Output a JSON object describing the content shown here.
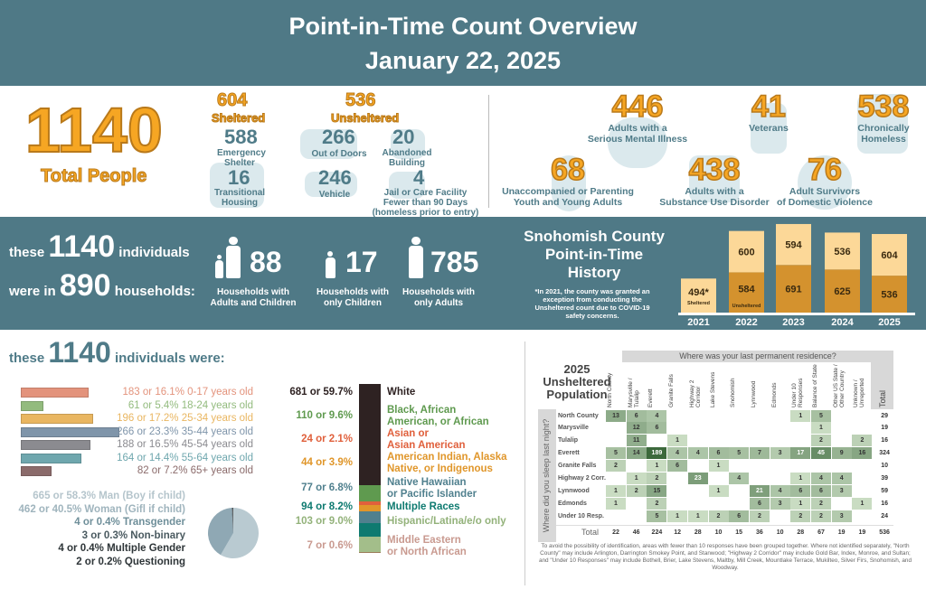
{
  "header": {
    "title": "Point-in-Time Count Overview",
    "date": "January 22, 2025"
  },
  "totals": {
    "total": "1140",
    "total_label": "Total People",
    "sheltered": "604",
    "sheltered_label": "Sheltered",
    "emergency": "588",
    "emergency_label": "Emergency Shelter",
    "transitional": "16",
    "transitional_label": "Transitional Housing",
    "unsheltered": "536",
    "unsheltered_label": "Unsheltered",
    "out_of_doors": "266",
    "out_of_doors_label": "Out of Doors",
    "abandoned": "20",
    "abandoned_label": "Abandoned Building",
    "vehicle": "246",
    "vehicle_label": "Vehicle",
    "jail": "4",
    "jail_label1": "Jail or Care Facility",
    "jail_label2": "Fewer than 90 Days",
    "jail_label3": "(homeless prior to entry)"
  },
  "subpops": [
    {
      "value": "446",
      "label1": "Adults with a",
      "label2": "Serious Mental Illness",
      "icon": "heart-head-icon"
    },
    {
      "value": "41",
      "label1": "Veterans",
      "label2": "",
      "icon": "dog-tags-icon"
    },
    {
      "value": "538",
      "label1": "Chronically",
      "label2": "Homeless",
      "icon": "calendar-icon"
    },
    {
      "value": "68",
      "label1": "Unaccompanied or Parenting",
      "label2": "Youth and Young Adults",
      "icon": "youth-icon"
    },
    {
      "value": "438",
      "label1": "Adults with a",
      "label2": "Substance Use Disorder",
      "icon": "shield-hand-icon"
    },
    {
      "value": "76",
      "label1": "Adult Survivors",
      "label2": "of Domestic Violence",
      "icon": "ribbon-circle-icon"
    }
  ],
  "households": {
    "these": "these",
    "individuals_num": "1140",
    "individuals": "individuals",
    "were_in": "were in",
    "hh_num": "890",
    "hh": "households:",
    "items": [
      {
        "value": "88",
        "label1": "Households with",
        "label2": "Adults and Children"
      },
      {
        "value": "17",
        "label1": "Households with",
        "label2": "only Children"
      },
      {
        "value": "785",
        "label1": "Households with",
        "label2": "only Adults"
      }
    ]
  },
  "history": {
    "title1": "Snohomish County",
    "title2": "Point-in-Time",
    "title3": "History",
    "note": "*In 2021, the county was granted an exception from conducting the Unsheltered count due to COVID-19 safety concerns.",
    "sheltered_tag": "Sheltered",
    "unsheltered_tag": "Unsheltered"
  },
  "demo": {
    "these": "these",
    "num": "1140",
    "rest": "individuals were:"
  },
  "heatmap_meta": {
    "title1": "2025",
    "title2": "Unsheltered",
    "title3": "Population",
    "top_header": "Where was your last permanent residence?",
    "side_header": "Where did you sleep last night?",
    "total_label": "Total",
    "footnote": "To avoid the possibility of identification, areas with fewer than 10 responses have been grouped together. Where not identified separately, \"North County\" may include Arlington, Darrington Smokey Point, and Stanwood; \"Highway 2 Corridor\" may include Gold Bar, Index, Monroe, and Sultan; and \"Under 10 Responses\" may include Bothell, Brier, Lake Stevens, Maltby, Mill Creek, Mountlake Terrace, Mukilteo, Silver Firs, Snohomish, and Woodway."
  },
  "colors": {
    "teal": "#4f7986",
    "orange": "#f6a623",
    "light_bar": "#fcd898",
    "dark_bar": "#d4922e"
  },
  "chart_data": [
    {
      "type": "bar",
      "stacked": true,
      "categories": [
        "2021",
        "2022",
        "2023",
        "2024",
        "2025"
      ],
      "series": [
        {
          "name": "Unsheltered",
          "values": [
            null,
            584,
            691,
            625,
            536
          ]
        },
        {
          "name": "Sheltered",
          "values": [
            494,
            600,
            594,
            536,
            604
          ]
        }
      ],
      "annotations": [
        "494*"
      ]
    },
    {
      "type": "bar",
      "orientation": "horizontal",
      "categories": [
        "0-17 years old",
        "18-24 years old",
        "25-34 years old",
        "35-44 years old",
        "45-54 years old",
        "55-64 years old",
        "65+ years old"
      ],
      "values": [
        183,
        61,
        196,
        266,
        188,
        164,
        82
      ],
      "labels": [
        "183 or 16.1% 0-17 years old",
        "61 or 5.4% 18-24 years old",
        "196 or 17.2% 25-34 years old",
        "266 or 23.3% 35-44 years old",
        "188 or 16.5% 45-54 years old",
        "164 or 14.4% 55-64 years old",
        "82 or 7.2% 65+ years old"
      ],
      "colors": [
        "#e3937c",
        "#93bb7e",
        "#e9b661",
        "#7f95aa",
        "#8b8b90",
        "#6fa7ae",
        "#8b6b6b"
      ]
    },
    {
      "type": "pie",
      "categories": [
        "Man (Boy if child)",
        "Woman (Girl if child)",
        "Transgender",
        "Non-binary",
        "Multiple Gender",
        "Questioning"
      ],
      "values": [
        665,
        462,
        4,
        3,
        4,
        2
      ],
      "labels": [
        "665 or 58.3% Man (Boy if child)",
        "462 or 40.5% Woman (Gifl if child)",
        "4 or 0.4% Transgender",
        "3 or 0.3% Non-binary",
        "4 or 0.4% Multiple Gender",
        "2 or 0.2% Questioning"
      ],
      "label_colors": [
        "#b5c5cc",
        "#9fb4bd",
        "#6f8f9a",
        "#4a5a60",
        "#2e3538",
        "#2e3538"
      ],
      "colors": [
        "#b9cad1",
        "#8fa8b4",
        "#5d7885",
        "#44575f",
        "#333",
        "#222"
      ]
    },
    {
      "type": "bar",
      "stacked": true,
      "orientation": "vertical-single",
      "categories": [
        "White",
        "Black, African American, or African",
        "Asian or Asian American",
        "American Indian, Alaska Native, or Indigenous",
        "Native Hawaiian or Pacific Islander",
        "Multiple Races",
        "Hispanic/Latina/e/o only",
        "Middle Eastern or North African"
      ],
      "values": [
        681,
        110,
        24,
        44,
        77,
        94,
        103,
        7
      ],
      "value_labels": [
        "681 or 59.7%",
        "110 or 9.6%",
        "24 or 2.1%",
        "44 or 3.9%",
        "77 or 6.8%",
        "94 or 8.2%",
        "103 or 9.0%",
        "7 or 0.6%"
      ],
      "label_lines": [
        [
          "White"
        ],
        [
          "Black, African",
          "American, or African"
        ],
        [
          "Asian or",
          "Asian American"
        ],
        [
          "American Indian, Alaska",
          "Native, or Indigenous"
        ],
        [
          "Native Hawaiian",
          "or Pacific Islander"
        ],
        [
          "Multiple Races"
        ],
        [
          "Hispanic/Latina/e/o only"
        ],
        [
          "Middle Eastern",
          "or North African"
        ]
      ],
      "colors": [
        "#2e2222",
        "#5f9a4f",
        "#e0603c",
        "#e0962a",
        "#50808e",
        "#0e7a70",
        "#a3be8a",
        "#9b7d5a"
      ],
      "text_colors": [
        "#2e2222",
        "#5f9a4f",
        "#e0603c",
        "#e0962a",
        "#50808e",
        "#0e7a70",
        "#93b27a",
        "#c99a90"
      ]
    },
    {
      "type": "heatmap",
      "title": "2025 Unsheltered Population",
      "xlabel": "Where was your last permanent residence?",
      "ylabel": "Where did you sleep last night?",
      "columns": [
        "North County",
        "Marysville / Tulalip",
        "Everett",
        "Granite Falls",
        "Highway 2 Corridor",
        "Lake Stevens",
        "Snohomish",
        "Lynnwood",
        "Edmonds",
        "Under 10 Responses",
        "Balance of State",
        "Other US State / Other Country",
        "Unknown / Unreported"
      ],
      "rows": [
        "North County",
        "Marysville",
        "Tulalip",
        "Everett",
        "Granite Falls",
        "Highway 2 Corr.",
        "Lynnwood",
        "Edmonds",
        "Under 10 Resp."
      ],
      "values": [
        [
          13,
          6,
          4,
          null,
          null,
          null,
          null,
          null,
          null,
          1,
          5,
          null,
          null
        ],
        [
          null,
          12,
          6,
          null,
          null,
          null,
          null,
          null,
          null,
          null,
          1,
          null,
          null
        ],
        [
          null,
          11,
          null,
          1,
          null,
          null,
          null,
          null,
          null,
          null,
          2,
          null,
          2
        ],
        [
          5,
          14,
          189,
          4,
          4,
          6,
          5,
          7,
          3,
          17,
          45,
          9,
          16
        ],
        [
          2,
          null,
          1,
          6,
          null,
          1,
          null,
          null,
          null,
          null,
          null,
          null,
          null
        ],
        [
          null,
          1,
          2,
          null,
          23,
          null,
          4,
          null,
          null,
          1,
          4,
          4,
          null
        ],
        [
          1,
          2,
          15,
          null,
          null,
          1,
          null,
          21,
          4,
          6,
          6,
          3,
          null
        ],
        [
          1,
          null,
          2,
          null,
          null,
          null,
          null,
          6,
          3,
          1,
          2,
          null,
          1
        ],
        [
          null,
          null,
          5,
          1,
          1,
          2,
          6,
          2,
          null,
          2,
          2,
          3,
          null
        ]
      ],
      "row_totals": [
        29,
        19,
        16,
        324,
        10,
        39,
        59,
        16,
        24
      ],
      "col_totals": [
        22,
        46,
        224,
        12,
        28,
        10,
        15,
        36,
        10,
        28,
        67,
        19,
        19
      ],
      "grand_total": 536
    }
  ]
}
